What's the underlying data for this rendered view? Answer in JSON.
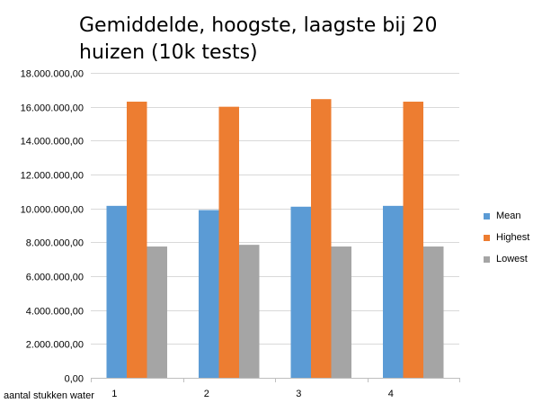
{
  "chart_data": {
    "type": "bar",
    "title": "Gemiddelde, hoogste, laagste bij 20 huizen (10k tests)",
    "xlabel": "aantal stukken water",
    "ylabel": "",
    "categories": [
      "1",
      "2",
      "3",
      "4"
    ],
    "series": [
      {
        "name": "Mean",
        "color": "#5B9BD5",
        "values": [
          10150000,
          9900000,
          10100000,
          10150000
        ]
      },
      {
        "name": "Highest",
        "color": "#ED7D31",
        "values": [
          16300000,
          16000000,
          16450000,
          16300000
        ]
      },
      {
        "name": "Lowest",
        "color": "#A5A5A5",
        "values": [
          7750000,
          7850000,
          7750000,
          7750000
        ]
      }
    ],
    "ylim": [
      0,
      18000000
    ],
    "yticks": [
      0,
      2000000,
      4000000,
      6000000,
      8000000,
      10000000,
      12000000,
      14000000,
      16000000,
      18000000
    ],
    "ytick_labels": [
      "0,00",
      "2.000.000,00",
      "4.000.000,00",
      "6.000.000,00",
      "8.000.000,00",
      "10.000.000,00",
      "12.000.000,00",
      "14.000.000,00",
      "16.000.000,00",
      "18.000.000,00"
    ],
    "grid": true,
    "legend_position": "right"
  }
}
